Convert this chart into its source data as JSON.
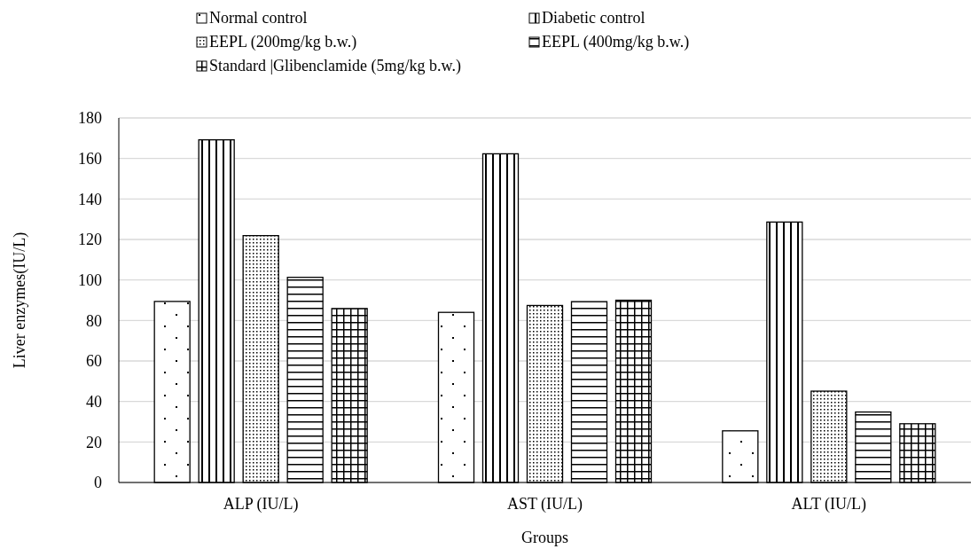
{
  "chart_data": {
    "type": "bar",
    "xlabel": "Groups",
    "ylabel": "Liver enzymes(IU/L)",
    "categories": [
      "ALP (IU/L)",
      "AST (IU/L)",
      "ALT (IU/L)"
    ],
    "series": [
      {
        "name": "Normal control",
        "color": "#000000",
        "values": [
          89.4,
          84,
          25.5
        ]
      },
      {
        "name": "Diabetic control",
        "color": "#000000",
        "values": [
          169.2,
          162.3,
          128.6
        ]
      },
      {
        "name": "EEPL (200mg/kg b.w.)",
        "color": "#000000",
        "values": [
          121.9,
          87.4,
          45.1
        ]
      },
      {
        "name": "EEPL (400mg/kg b.w.)",
        "color": "#000000",
        "values": [
          101.3,
          89.3,
          34.8
        ]
      },
      {
        "name": "Standard |Glibenclamide (5mg/kg b.w.)",
        "color": "#000000",
        "values": [
          85.9,
          90,
          29
        ]
      }
    ],
    "ylim": [
      0,
      180
    ],
    "yticks": [
      0,
      20,
      40,
      60,
      80,
      100,
      120,
      140,
      160,
      180
    ],
    "grid": "y",
    "legend": "top"
  }
}
